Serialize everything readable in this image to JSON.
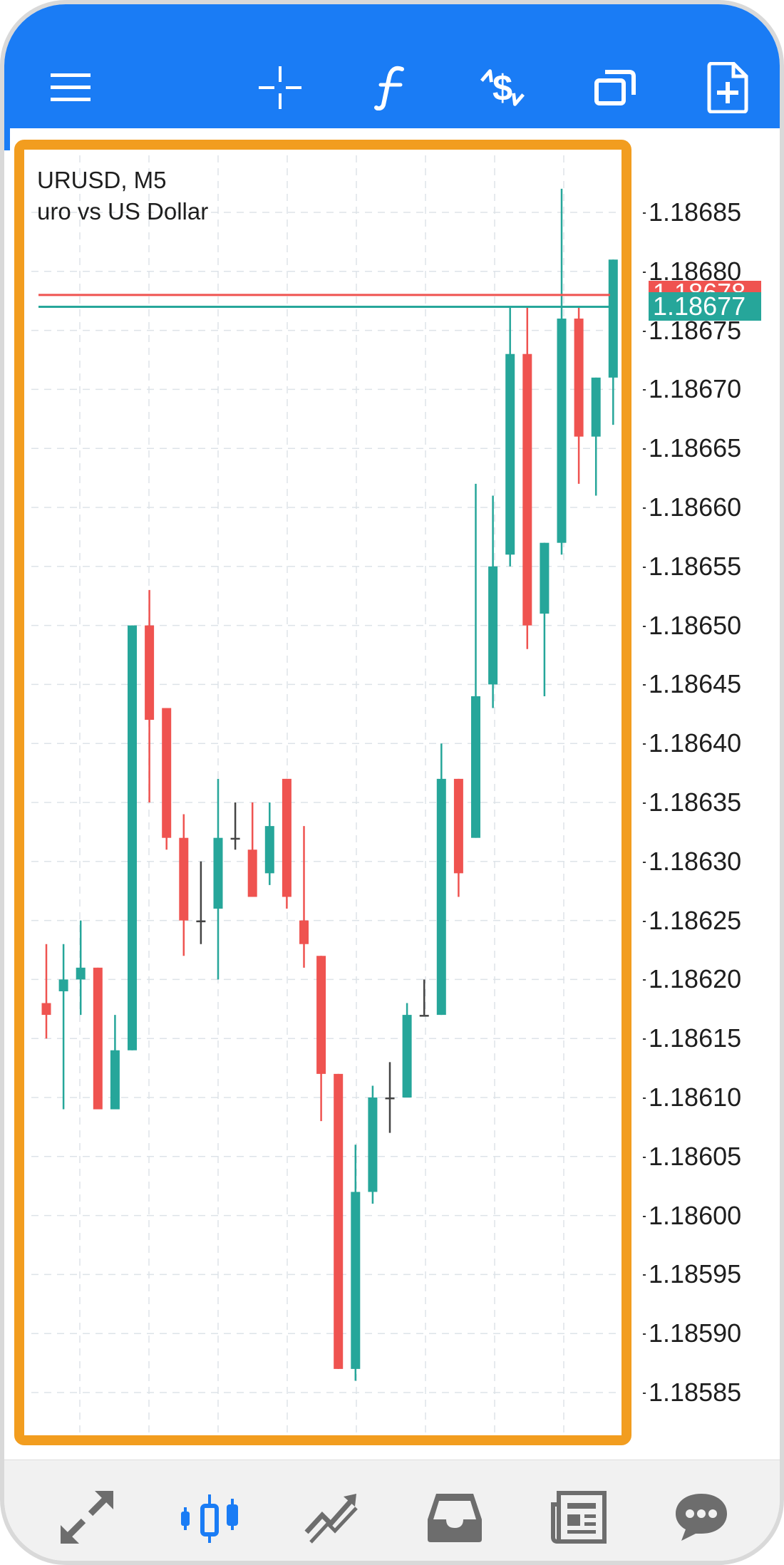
{
  "toolbar": {
    "icons": [
      "menu-icon",
      "crosshair-icon",
      "indicators-icon",
      "trade-icon",
      "windows-icon",
      "new-order-icon"
    ],
    "accent": "#1a7cf5"
  },
  "chart": {
    "symbol": "URUSD, M5",
    "description": "uro vs US Dollar",
    "price_labels": [
      "1.18685",
      "1.18680",
      "1.18675",
      "1.18670",
      "1.18665",
      "1.18660",
      "1.18655",
      "1.18650",
      "1.18645",
      "1.18640",
      "1.18635",
      "1.18630",
      "1.18625",
      "1.18620",
      "1.18615",
      "1.18610",
      "1.18605",
      "1.18600",
      "1.18595",
      "1.18590",
      "1.18585"
    ],
    "ask_price": "1.18678",
    "bid_price": "1.18677",
    "ask_color": "#ef5350",
    "bid_color": "#26a69a",
    "up_color": "#26a69a",
    "down_color": "#ef5350",
    "highlight_color": "#f29d1f"
  },
  "chart_data": {
    "type": "candlestick",
    "y_axis": {
      "min": 1.18585,
      "max": 1.18685,
      "tick_step": 5e-05
    },
    "grid": true,
    "candles": [
      {
        "o": 1.18618,
        "h": 1.18623,
        "l": 1.18615,
        "c": 1.18617
      },
      {
        "o": 1.18619,
        "h": 1.18623,
        "l": 1.18609,
        "c": 1.1862
      },
      {
        "o": 1.1862,
        "h": 1.18625,
        "l": 1.18617,
        "c": 1.18621
      },
      {
        "o": 1.18621,
        "h": 1.18621,
        "l": 1.18609,
        "c": 1.18609
      },
      {
        "o": 1.18609,
        "h": 1.18617,
        "l": 1.18609,
        "c": 1.18614
      },
      {
        "o": 1.18614,
        "h": 1.1865,
        "l": 1.18614,
        "c": 1.1865
      },
      {
        "o": 1.1865,
        "h": 1.18653,
        "l": 1.18635,
        "c": 1.18642
      },
      {
        "o": 1.18643,
        "h": 1.18643,
        "l": 1.18631,
        "c": 1.18632
      },
      {
        "o": 1.18632,
        "h": 1.18634,
        "l": 1.18622,
        "c": 1.18625
      },
      {
        "o": 1.18625,
        "h": 1.1863,
        "l": 1.18623,
        "c": 1.18625
      },
      {
        "o": 1.18626,
        "h": 1.18637,
        "l": 1.1862,
        "c": 1.18632
      },
      {
        "o": 1.18632,
        "h": 1.18635,
        "l": 1.18631,
        "c": 1.18632
      },
      {
        "o": 1.18631,
        "h": 1.18635,
        "l": 1.18627,
        "c": 1.18627
      },
      {
        "o": 1.18629,
        "h": 1.18635,
        "l": 1.18628,
        "c": 1.18633
      },
      {
        "o": 1.18637,
        "h": 1.18637,
        "l": 1.18626,
        "c": 1.18627
      },
      {
        "o": 1.18625,
        "h": 1.18633,
        "l": 1.18621,
        "c": 1.18623
      },
      {
        "o": 1.18622,
        "h": 1.18622,
        "l": 1.18608,
        "c": 1.18612
      },
      {
        "o": 1.18612,
        "h": 1.18612,
        "l": 1.18587,
        "c": 1.18587
      },
      {
        "o": 1.18587,
        "h": 1.18606,
        "l": 1.18586,
        "c": 1.18602
      },
      {
        "o": 1.18602,
        "h": 1.18611,
        "l": 1.18601,
        "c": 1.1861
      },
      {
        "o": 1.1861,
        "h": 1.18613,
        "l": 1.18607,
        "c": 1.1861
      },
      {
        "o": 1.1861,
        "h": 1.18618,
        "l": 1.1861,
        "c": 1.18617
      },
      {
        "o": 1.18617,
        "h": 1.1862,
        "l": 1.18617,
        "c": 1.18617
      },
      {
        "o": 1.18617,
        "h": 1.1864,
        "l": 1.18617,
        "c": 1.18637
      },
      {
        "o": 1.18637,
        "h": 1.18637,
        "l": 1.18627,
        "c": 1.18629
      },
      {
        "o": 1.18632,
        "h": 1.18662,
        "l": 1.18632,
        "c": 1.18644
      },
      {
        "o": 1.18645,
        "h": 1.18661,
        "l": 1.18643,
        "c": 1.18655
      },
      {
        "o": 1.18656,
        "h": 1.18677,
        "l": 1.18655,
        "c": 1.18673
      },
      {
        "o": 1.18673,
        "h": 1.18677,
        "l": 1.18648,
        "c": 1.1865
      },
      {
        "o": 1.18651,
        "h": 1.18657,
        "l": 1.18644,
        "c": 1.18657
      },
      {
        "o": 1.18657,
        "h": 1.18687,
        "l": 1.18656,
        "c": 1.18676
      },
      {
        "o": 1.18676,
        "h": 1.18677,
        "l": 1.18662,
        "c": 1.18666
      },
      {
        "o": 1.18666,
        "h": 1.18671,
        "l": 1.18661,
        "c": 1.18671
      },
      {
        "o": 1.18671,
        "h": 1.18681,
        "l": 1.18667,
        "c": 1.18681
      }
    ],
    "lines": [
      {
        "name": "ask",
        "value": 1.18678
      },
      {
        "name": "bid",
        "value": 1.18677
      }
    ]
  },
  "bottom_nav": {
    "items": [
      {
        "name": "quotes-icon",
        "active": false
      },
      {
        "name": "chart-icon",
        "active": true
      },
      {
        "name": "trade-tab-icon",
        "active": false
      },
      {
        "name": "history-icon",
        "active": false
      },
      {
        "name": "news-icon",
        "active": false
      },
      {
        "name": "messages-icon",
        "active": false
      }
    ]
  }
}
